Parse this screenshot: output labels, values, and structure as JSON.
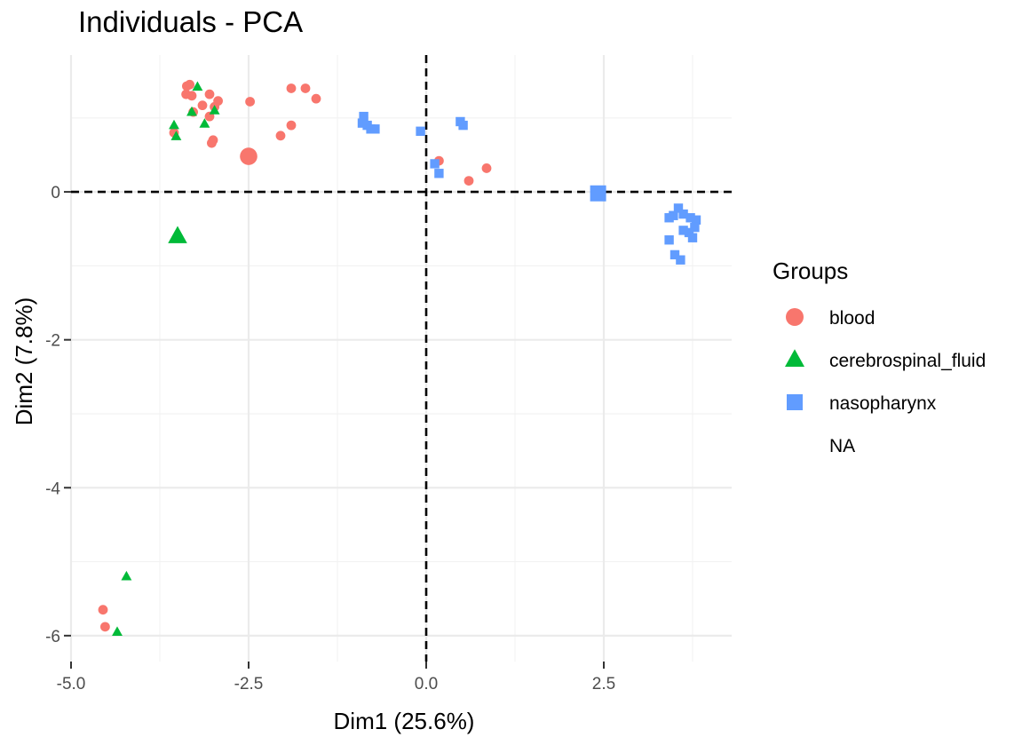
{
  "chart_data": {
    "type": "scatter",
    "title": "Individuals - PCA",
    "xlabel": "Dim1 (25.6%)",
    "ylabel": "Dim2 (7.8%)",
    "xlim": [
      -5.0,
      4.3
    ],
    "ylim": [
      -6.35,
      1.85
    ],
    "x_ticks": [
      -5.0,
      -2.5,
      0.0,
      2.5
    ],
    "x_tick_labels": [
      "-5.0",
      "-2.5",
      "0.0",
      "2.5"
    ],
    "y_ticks": [
      -6,
      -4,
      -2,
      0
    ],
    "y_tick_labels": [
      "-6",
      "-4",
      "-2",
      "0"
    ],
    "grid": true,
    "reference_lines": {
      "x": 0,
      "y": 0,
      "style": "dashed"
    },
    "legend": {
      "title": "Groups",
      "placement": "right",
      "entries": [
        "blood",
        "cerebrospinal_fluid",
        "nasopharynx",
        "NA"
      ]
    },
    "series": [
      {
        "name": "blood",
        "shape": "circle",
        "color": "#F8766D",
        "points": [
          [
            -3.33,
            1.45
          ],
          [
            -3.37,
            1.43
          ],
          [
            -3.3,
            1.3
          ],
          [
            -3.38,
            1.32
          ],
          [
            -3.05,
            1.32
          ],
          [
            -3.15,
            1.17
          ],
          [
            -2.93,
            1.23
          ],
          [
            -2.98,
            1.15
          ],
          [
            -3.28,
            1.08
          ],
          [
            -3.05,
            1.02
          ],
          [
            -3.0,
            0.7
          ],
          [
            -3.02,
            0.66
          ],
          [
            -3.55,
            0.8
          ],
          [
            -2.48,
            1.22
          ],
          [
            -1.9,
            1.4
          ],
          [
            -1.7,
            1.4
          ],
          [
            -1.55,
            1.26
          ],
          [
            -1.9,
            0.9
          ],
          [
            -2.05,
            0.76
          ],
          [
            0.18,
            0.42
          ],
          [
            0.6,
            0.15
          ],
          [
            0.85,
            0.32
          ],
          [
            -4.55,
            -5.65
          ],
          [
            -4.52,
            -5.88
          ]
        ],
        "centroid": [
          -2.5,
          0.48
        ]
      },
      {
        "name": "cerebrospinal_fluid",
        "shape": "triangle",
        "color": "#00BA38",
        "points": [
          [
            -3.22,
            1.42
          ],
          [
            -3.3,
            1.08
          ],
          [
            -2.98,
            1.1
          ],
          [
            -3.12,
            0.92
          ],
          [
            -3.55,
            0.9
          ],
          [
            -3.52,
            0.75
          ],
          [
            -4.22,
            -5.2
          ],
          [
            -4.35,
            -5.95
          ]
        ],
        "centroid": [
          -3.5,
          -0.6
        ]
      },
      {
        "name": "nasopharynx",
        "shape": "square",
        "color": "#619CFF",
        "points": [
          [
            -0.88,
            1.02
          ],
          [
            -0.9,
            0.93
          ],
          [
            -0.83,
            0.9
          ],
          [
            -0.78,
            0.85
          ],
          [
            -0.72,
            0.85
          ],
          [
            -0.08,
            0.82
          ],
          [
            0.48,
            0.95
          ],
          [
            0.52,
            0.9
          ],
          [
            0.12,
            0.38
          ],
          [
            0.18,
            0.25
          ],
          [
            3.55,
            -0.22
          ],
          [
            3.48,
            -0.32
          ],
          [
            3.62,
            -0.3
          ],
          [
            3.72,
            -0.35
          ],
          [
            3.8,
            -0.38
          ],
          [
            3.78,
            -0.48
          ],
          [
            3.7,
            -0.55
          ],
          [
            3.62,
            -0.52
          ],
          [
            3.75,
            -0.62
          ],
          [
            3.42,
            -0.65
          ],
          [
            3.5,
            -0.85
          ],
          [
            3.58,
            -0.92
          ],
          [
            3.42,
            -0.35
          ]
        ],
        "centroid": [
          2.42,
          -0.02
        ]
      }
    ]
  }
}
